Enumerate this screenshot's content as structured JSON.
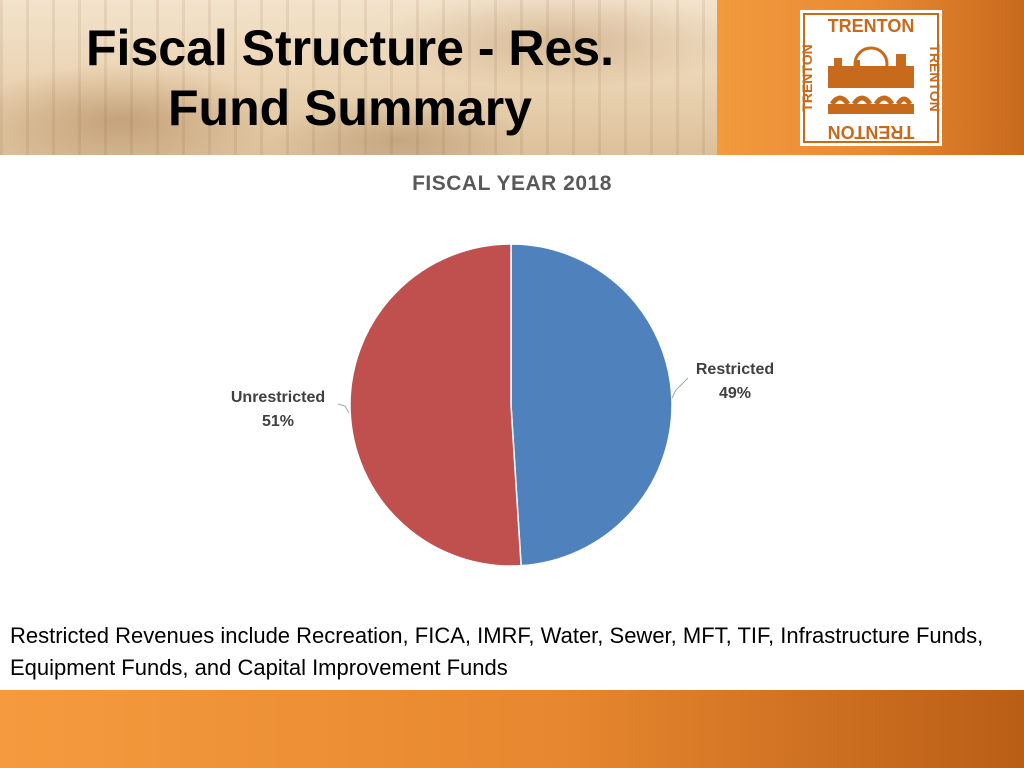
{
  "header": {
    "title": "Fiscal Structure -  Res.\nFund Summary",
    "logo_text": "TRENTON"
  },
  "colors": {
    "restricted": "#4f81bd",
    "unrestricted": "#c0504d",
    "accent_orange": "#e98a33"
  },
  "chart_data": {
    "type": "pie",
    "title": "FISCAL YEAR 2018",
    "slices": [
      {
        "label": "Restricted",
        "value": 49,
        "percent_label": "49%"
      },
      {
        "label": "Unrestricted",
        "value": 51,
        "percent_label": "51%"
      }
    ],
    "legend": "none"
  },
  "footnote": "Restricted Revenues include Recreation, FICA, IMRF, Water, Sewer, MFT, TIF, Infrastructure Funds, Equipment Funds, and Capital Improvement Funds"
}
